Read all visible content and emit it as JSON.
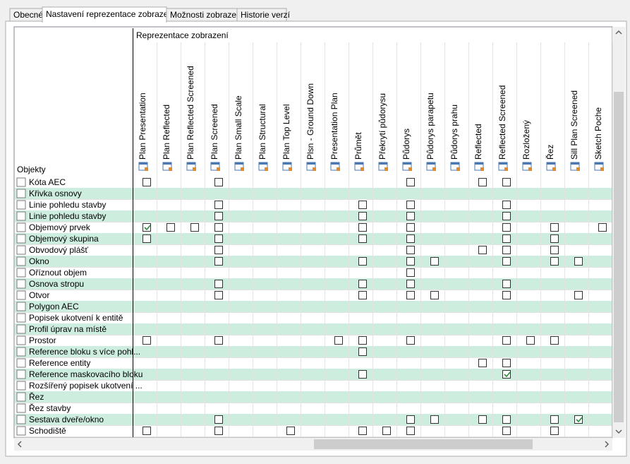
{
  "tabs": [
    "Obecné",
    "Nastavení reprezentace zobrazení",
    "Možnosti zobrazení",
    "Historie verzí"
  ],
  "active_tab": 1,
  "grid": {
    "group_header": "Reprezentace zobrazení",
    "row_header": "Objekty",
    "columns": [
      "Plan Presentation",
      "Plan Reflected",
      "Plan Reflected Screened",
      "Plan Screened",
      "Plan Small Scale",
      "Plan Structural",
      "Plan Top Level",
      "Plsn - Ground Down",
      "Presentation Plan",
      "Průmět",
      "Překrytí půdorysu",
      "Půdorys",
      "Půdorys parapetu",
      "Půdorys prahu",
      "Reflected",
      "Reflected Screened",
      "Rozložený",
      "Řez",
      "Sill Plan Screened",
      "Sketch Poche"
    ],
    "rows": [
      {
        "label": "Kóta AEC",
        "cells": [
          false,
          null,
          null,
          false,
          null,
          null,
          null,
          null,
          null,
          null,
          null,
          false,
          null,
          null,
          false,
          false,
          null,
          null,
          null,
          null
        ]
      },
      {
        "label": "Křivka osnovy",
        "cells": [
          null,
          null,
          null,
          null,
          null,
          null,
          null,
          null,
          null,
          null,
          null,
          null,
          null,
          null,
          null,
          null,
          null,
          null,
          null,
          null
        ]
      },
      {
        "label": "Linie pohledu stavby",
        "cells": [
          null,
          null,
          null,
          false,
          null,
          null,
          null,
          null,
          null,
          false,
          null,
          false,
          null,
          null,
          null,
          false,
          null,
          null,
          null,
          null
        ]
      },
      {
        "label": "Linie pohledu stavby",
        "cells": [
          null,
          null,
          null,
          false,
          null,
          null,
          null,
          null,
          null,
          false,
          null,
          false,
          null,
          null,
          null,
          false,
          null,
          null,
          null,
          null
        ]
      },
      {
        "label": "Objemový prvek",
        "cells": [
          true,
          false,
          false,
          false,
          null,
          null,
          null,
          null,
          null,
          false,
          null,
          false,
          null,
          null,
          null,
          false,
          null,
          false,
          null,
          false
        ]
      },
      {
        "label": "Objemový skupina",
        "cells": [
          false,
          null,
          null,
          false,
          null,
          null,
          null,
          null,
          null,
          false,
          null,
          false,
          null,
          null,
          null,
          false,
          null,
          false,
          null,
          null
        ]
      },
      {
        "label": "Obvodový plášť",
        "cells": [
          null,
          null,
          null,
          false,
          null,
          null,
          null,
          null,
          null,
          null,
          null,
          false,
          null,
          null,
          false,
          false,
          null,
          false,
          null,
          null
        ]
      },
      {
        "label": "Okno",
        "cells": [
          null,
          null,
          null,
          false,
          null,
          null,
          null,
          null,
          null,
          false,
          null,
          false,
          false,
          null,
          null,
          false,
          null,
          false,
          false,
          null
        ]
      },
      {
        "label": "Oříznout objem",
        "cells": [
          null,
          null,
          null,
          null,
          null,
          null,
          null,
          null,
          null,
          null,
          null,
          false,
          null,
          null,
          null,
          null,
          null,
          null,
          null,
          null
        ]
      },
      {
        "label": "Osnova stropu",
        "cells": [
          null,
          null,
          null,
          false,
          null,
          null,
          null,
          null,
          null,
          false,
          null,
          false,
          null,
          null,
          null,
          false,
          null,
          null,
          null,
          null
        ]
      },
      {
        "label": "Otvor",
        "cells": [
          null,
          null,
          null,
          false,
          null,
          null,
          null,
          null,
          null,
          false,
          null,
          false,
          false,
          null,
          null,
          false,
          null,
          null,
          false,
          null
        ]
      },
      {
        "label": "Polygon AEC",
        "cells": [
          null,
          null,
          null,
          null,
          null,
          null,
          null,
          null,
          null,
          null,
          null,
          null,
          null,
          null,
          null,
          null,
          null,
          null,
          null,
          null
        ]
      },
      {
        "label": "Popisek ukotvení k entitě",
        "cells": [
          null,
          null,
          null,
          null,
          null,
          null,
          null,
          null,
          null,
          null,
          null,
          null,
          null,
          null,
          null,
          null,
          null,
          null,
          null,
          null
        ]
      },
      {
        "label": "Profil úprav na místě",
        "cells": [
          null,
          null,
          null,
          null,
          null,
          null,
          null,
          null,
          null,
          null,
          null,
          null,
          null,
          null,
          null,
          null,
          null,
          null,
          null,
          null
        ]
      },
      {
        "label": "Prostor",
        "cells": [
          false,
          null,
          null,
          false,
          null,
          null,
          null,
          null,
          false,
          false,
          null,
          false,
          null,
          null,
          null,
          false,
          false,
          false,
          null,
          null
        ]
      },
      {
        "label": "Reference bloku s více pohl...",
        "cells": [
          null,
          null,
          null,
          null,
          null,
          null,
          null,
          null,
          null,
          false,
          null,
          null,
          null,
          null,
          null,
          null,
          null,
          null,
          null,
          null
        ]
      },
      {
        "label": "Reference entity",
        "cells": [
          null,
          null,
          null,
          null,
          null,
          null,
          null,
          null,
          null,
          null,
          null,
          null,
          null,
          null,
          false,
          false,
          null,
          null,
          null,
          null
        ]
      },
      {
        "label": "Reference maskovacího bloku",
        "cells": [
          null,
          null,
          null,
          null,
          null,
          null,
          null,
          null,
          null,
          false,
          null,
          null,
          null,
          null,
          null,
          true,
          null,
          null,
          null,
          null
        ]
      },
      {
        "label": "Rozšířený popisek ukotvení ...",
        "cells": [
          null,
          null,
          null,
          null,
          null,
          null,
          null,
          null,
          null,
          null,
          null,
          null,
          null,
          null,
          null,
          null,
          null,
          null,
          null,
          null
        ]
      },
      {
        "label": "Řez",
        "cells": [
          null,
          null,
          null,
          null,
          null,
          null,
          null,
          null,
          null,
          null,
          null,
          null,
          null,
          null,
          null,
          null,
          null,
          null,
          null,
          null
        ]
      },
      {
        "label": "Řez stavby",
        "cells": [
          null,
          null,
          null,
          null,
          null,
          null,
          null,
          null,
          null,
          null,
          null,
          null,
          null,
          null,
          null,
          null,
          null,
          null,
          null,
          null
        ]
      },
      {
        "label": "Sestava dveře/okno",
        "cells": [
          null,
          null,
          null,
          false,
          null,
          null,
          null,
          null,
          null,
          null,
          null,
          false,
          false,
          null,
          false,
          false,
          null,
          false,
          true,
          null
        ]
      },
      {
        "label": "Schodiště",
        "cells": [
          false,
          null,
          null,
          false,
          null,
          null,
          false,
          null,
          null,
          false,
          false,
          false,
          null,
          null,
          null,
          false,
          null,
          false,
          null,
          null
        ]
      }
    ]
  }
}
